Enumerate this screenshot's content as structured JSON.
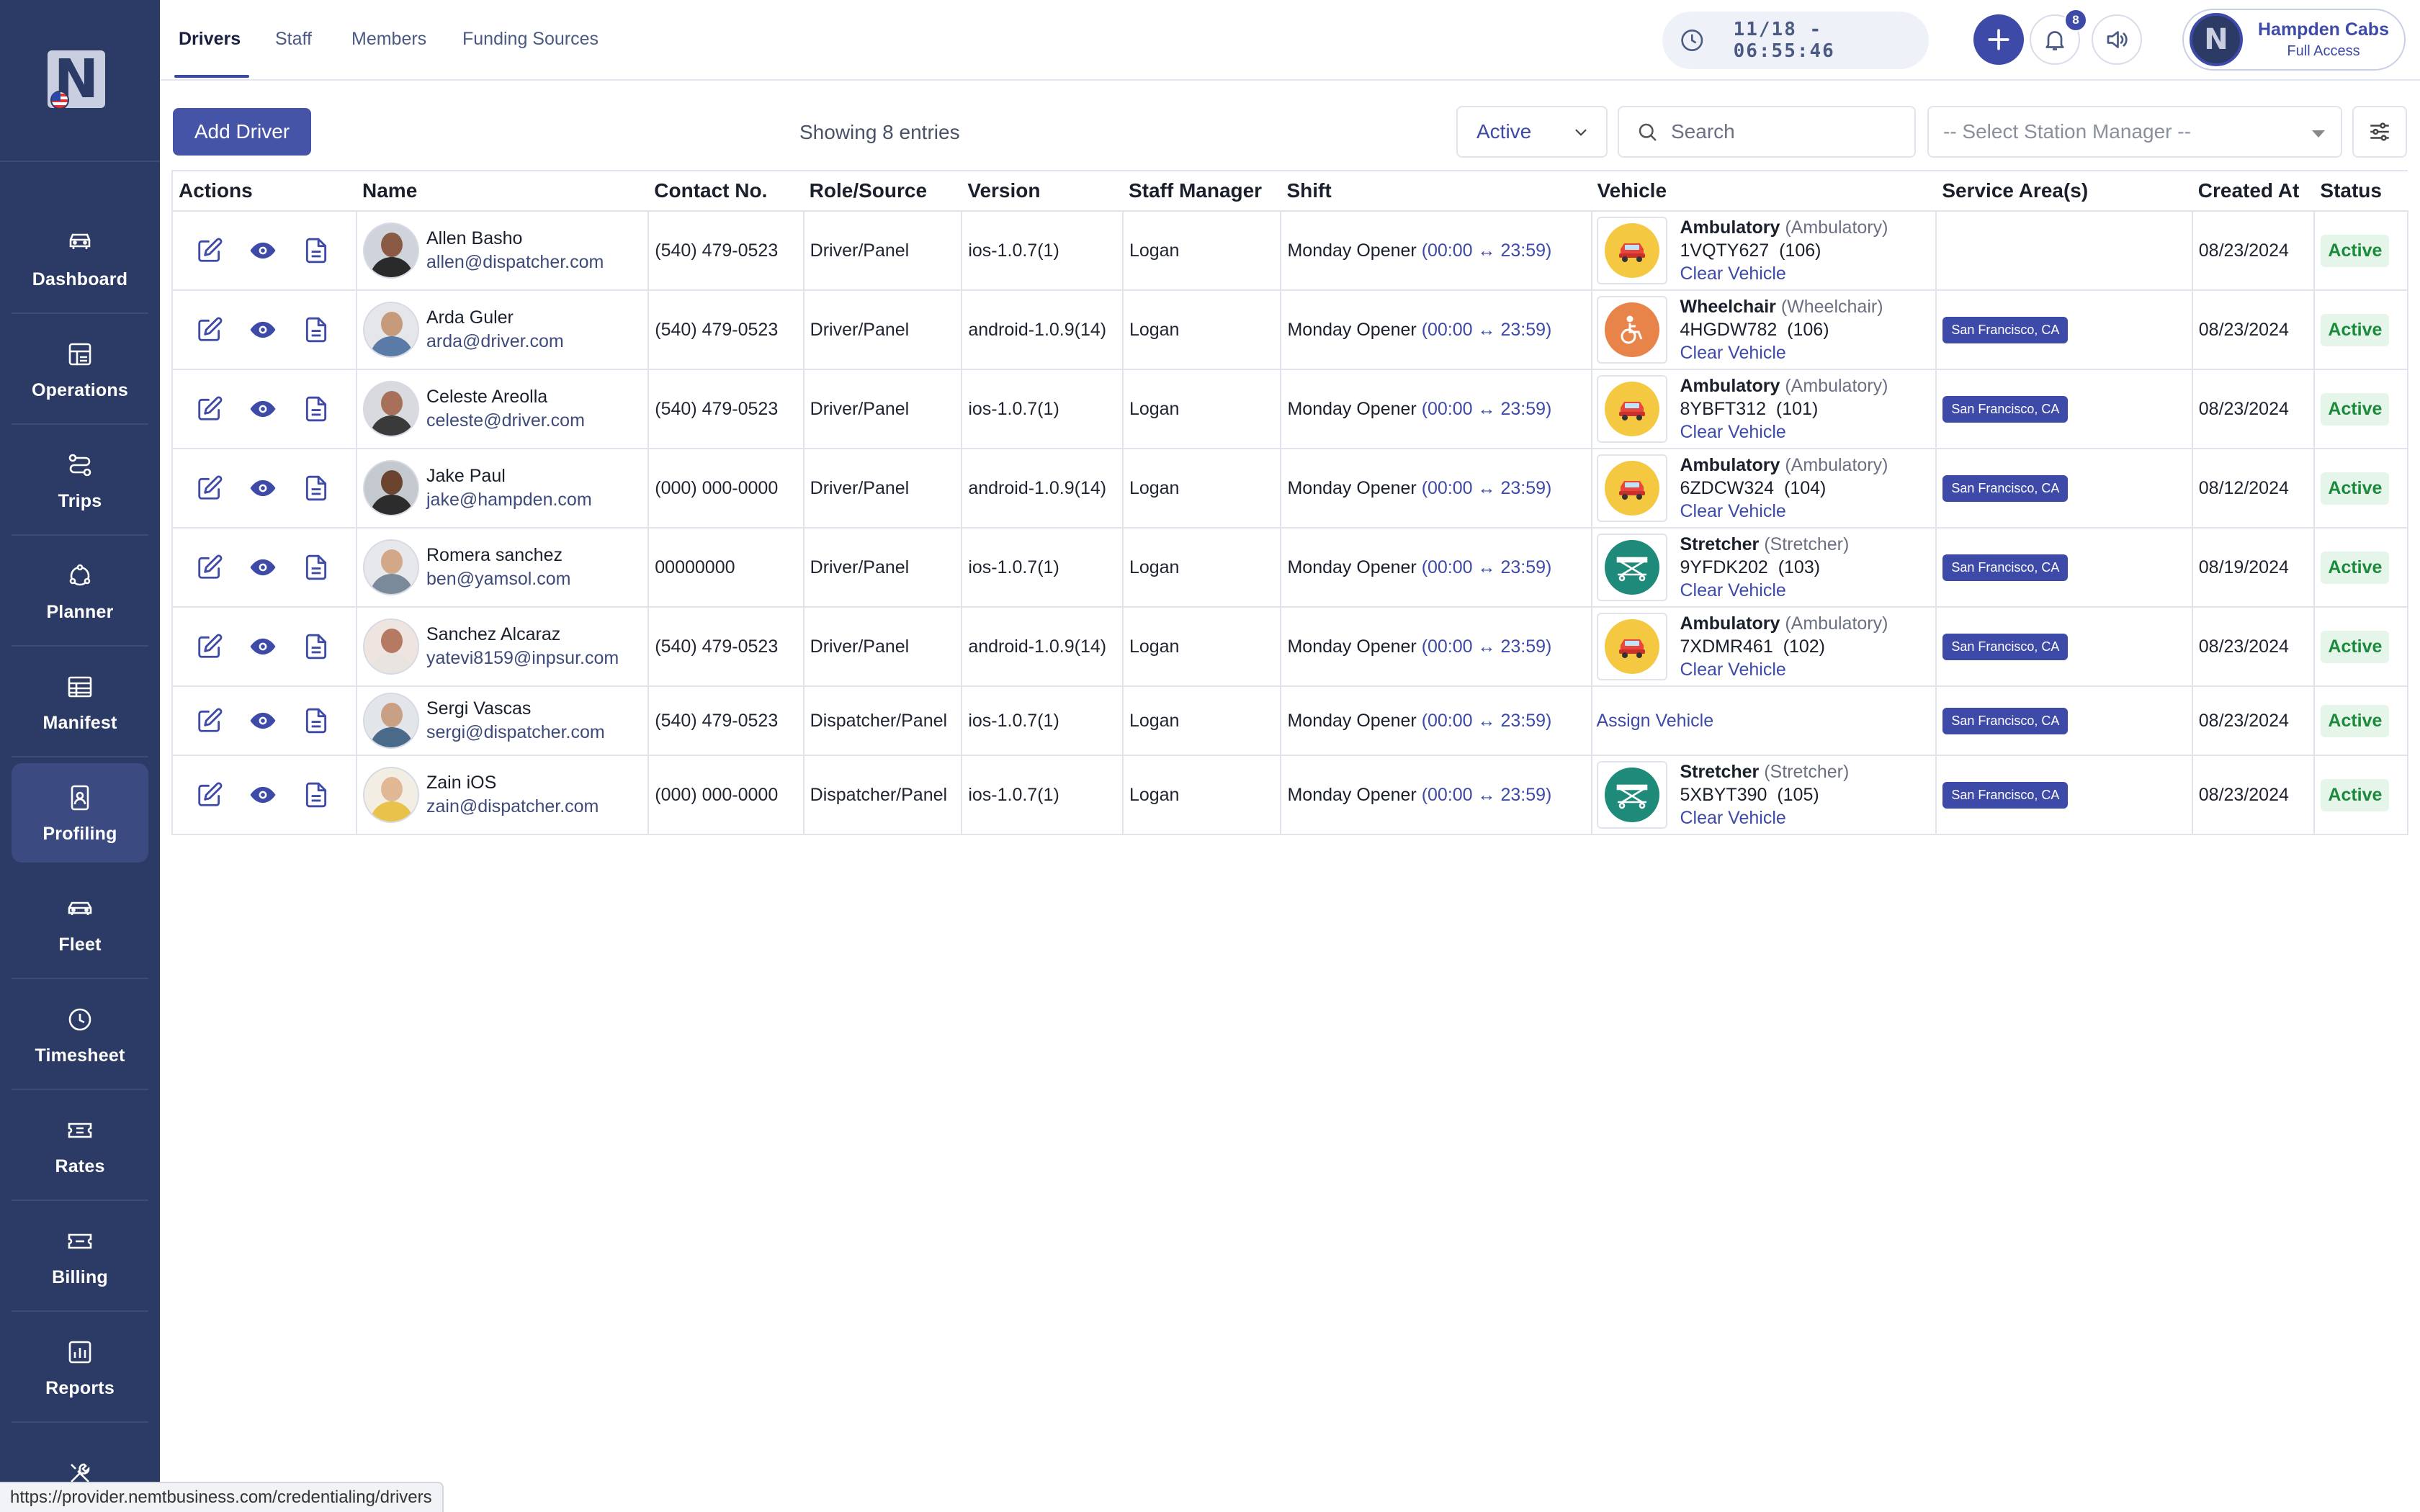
{
  "sidebar": {
    "items": [
      {
        "label": "Dashboard",
        "icon": "car-icon"
      },
      {
        "label": "Operations",
        "icon": "operations-icon"
      },
      {
        "label": "Trips",
        "icon": "route-icon"
      },
      {
        "label": "Planner",
        "icon": "planner-icon"
      },
      {
        "label": "Manifest",
        "icon": "table-icon"
      },
      {
        "label": "Profiling",
        "icon": "id-badge-icon"
      },
      {
        "label": "Fleet",
        "icon": "fleet-car-icon"
      },
      {
        "label": "Timesheet",
        "icon": "clock-icon"
      },
      {
        "label": "Rates",
        "icon": "ticket-icon"
      },
      {
        "label": "Billing",
        "icon": "billing-icon"
      },
      {
        "label": "Reports",
        "icon": "chart-icon"
      },
      {
        "label": "",
        "icon": "tools-icon"
      }
    ],
    "active_index": 5
  },
  "topbar": {
    "tabs": [
      "Drivers",
      "Staff",
      "Members",
      "Funding Sources"
    ],
    "active_tab": "Drivers",
    "clock": "11/18 - 06:55:46",
    "notification_count": "8",
    "account_name": "Hampden Cabs",
    "account_role": "Full Access"
  },
  "toolbar": {
    "add_label": "Add Driver",
    "showing": "Showing 8 entries",
    "status_value": "Active",
    "search_placeholder": "Search",
    "manager_placeholder": "-- Select Station Manager --"
  },
  "table": {
    "headers": [
      "Actions",
      "Name",
      "Contact No.",
      "Role/Source",
      "Version",
      "Staff Manager",
      "Shift",
      "Vehicle",
      "Service Area(s)",
      "Created At",
      "Status"
    ],
    "shift_time": "(00:00 ↔ 23:59)",
    "clear_vehicle": "Clear Vehicle",
    "assign_vehicle": "Assign Vehicle",
    "rows": [
      {
        "name": "Allen Basho",
        "email": "allen@dispatcher.com",
        "contact": "(540) 479-0523",
        "role": "Driver/Panel",
        "version": "ios-1.0.7(1)",
        "manager": "Logan",
        "shift": "Monday Opener",
        "vehicle_type": "Ambulatory",
        "vehicle_sub": "(Ambulatory)",
        "plate": "1VQTY627",
        "unit": "(106)",
        "vehicle_icon": "car-icon",
        "area": "",
        "created": "08/23/2024",
        "status": "Active"
      },
      {
        "name": "Arda Guler",
        "email": "arda@driver.com",
        "contact": "(540) 479-0523",
        "role": "Driver/Panel",
        "version": "android-1.0.9(14)",
        "manager": "Logan",
        "shift": "Monday Opener",
        "vehicle_type": "Wheelchair",
        "vehicle_sub": "(Wheelchair)",
        "plate": "4HGDW782",
        "unit": "(106)",
        "vehicle_icon": "wheelchair-icon",
        "area": "San Francisco, CA",
        "created": "08/23/2024",
        "status": "Active"
      },
      {
        "name": "Celeste Areolla",
        "email": "celeste@driver.com",
        "contact": "(540) 479-0523",
        "role": "Driver/Panel",
        "version": "ios-1.0.7(1)",
        "manager": "Logan",
        "shift": "Monday Opener",
        "vehicle_type": "Ambulatory",
        "vehicle_sub": "(Ambulatory)",
        "plate": "8YBFT312",
        "unit": "(101)",
        "vehicle_icon": "car-icon",
        "area": "San Francisco, CA",
        "created": "08/23/2024",
        "status": "Active"
      },
      {
        "name": "Jake Paul",
        "email": "jake@hampden.com",
        "contact": "(000) 000-0000",
        "role": "Driver/Panel",
        "version": "android-1.0.9(14)",
        "manager": "Logan",
        "shift": "Monday Opener",
        "vehicle_type": "Ambulatory",
        "vehicle_sub": "(Ambulatory)",
        "plate": "6ZDCW324",
        "unit": "(104)",
        "vehicle_icon": "car-icon",
        "area": "San Francisco, CA",
        "created": "08/12/2024",
        "status": "Active"
      },
      {
        "name": "Romera sanchez",
        "email": "ben@yamsol.com",
        "contact": "00000000",
        "role": "Driver/Panel",
        "version": "ios-1.0.7(1)",
        "manager": "Logan",
        "shift": "Monday Opener",
        "vehicle_type": "Stretcher",
        "vehicle_sub": "(Stretcher)",
        "plate": "9YFDK202",
        "unit": "(103)",
        "vehicle_icon": "stretcher-icon",
        "area": "San Francisco, CA",
        "created": "08/19/2024",
        "status": "Active"
      },
      {
        "name": "Sanchez Alcaraz",
        "email": "yatevi8159@inpsur.com",
        "contact": "(540) 479-0523",
        "role": "Driver/Panel",
        "version": "android-1.0.9(14)",
        "manager": "Logan",
        "shift": "Monday Opener",
        "vehicle_type": "Ambulatory",
        "vehicle_sub": "(Ambulatory)",
        "plate": "7XDMR461",
        "unit": "(102)",
        "vehicle_icon": "car-icon",
        "area": "San Francisco, CA",
        "created": "08/23/2024",
        "status": "Active"
      },
      {
        "name": "Sergi Vascas",
        "email": "sergi@dispatcher.com",
        "contact": "(540) 479-0523",
        "role": "Dispatcher/Panel",
        "version": "ios-1.0.7(1)",
        "manager": "Logan",
        "shift": "Monday Opener",
        "vehicle_type": "",
        "vehicle_sub": "",
        "plate": "",
        "unit": "",
        "vehicle_icon": "",
        "area": "San Francisco, CA",
        "created": "08/23/2024",
        "status": "Active"
      },
      {
        "name": "Zain iOS",
        "email": "zain@dispatcher.com",
        "contact": "(000) 000-0000",
        "role": "Dispatcher/Panel",
        "version": "ios-1.0.7(1)",
        "manager": "Logan",
        "shift": "Monday Opener",
        "vehicle_type": "Stretcher",
        "vehicle_sub": "(Stretcher)",
        "plate": "5XBYT390",
        "unit": "(105)",
        "vehicle_icon": "stretcher-icon",
        "area": "San Francisco, CA",
        "created": "08/23/2024",
        "status": "Active"
      }
    ]
  },
  "status_url": "https://provider.nemtbusiness.com/credentialing/drivers",
  "colors": {
    "sidebar": "#2c3a66",
    "accent": "#3d4aa8",
    "status_green": "#1b8a3b",
    "car_badge": "#f5c842",
    "wheelchair_badge": "#e8834a",
    "stretcher_badge": "#1d8a7a"
  }
}
